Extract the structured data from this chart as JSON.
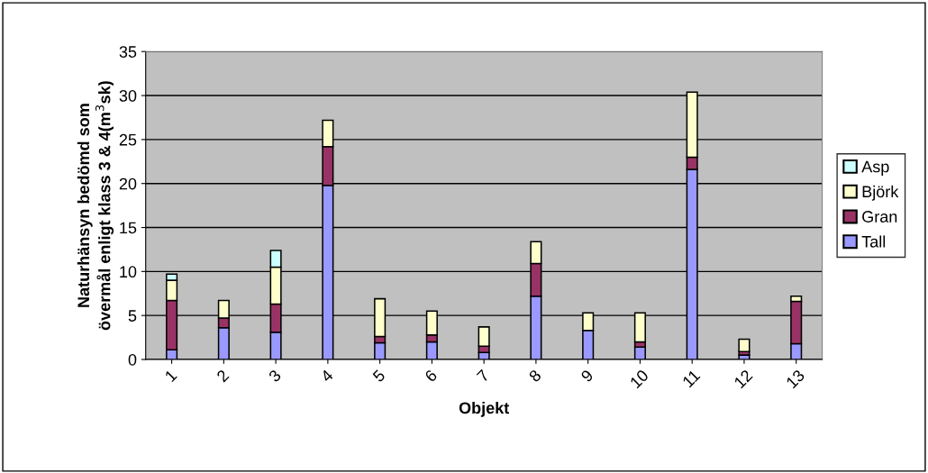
{
  "chart_data": {
    "type": "bar",
    "stacked": true,
    "xlabel": "Objekt",
    "ylabel": "Naturhänsyn bedömd som\növermål enligt klass 3 & 4(m$^{3}$sk)",
    "categories": [
      "1",
      "2",
      "3",
      "4",
      "5",
      "6",
      "7",
      "8",
      "9",
      "10",
      "11",
      "12",
      "13"
    ],
    "series": [
      {
        "name": "Tall",
        "color": "#9999ff",
        "values": [
          1.1,
          3.6,
          3.1,
          19.8,
          1.9,
          2.0,
          0.8,
          7.2,
          3.3,
          1.4,
          21.6,
          0.5,
          1.8
        ]
      },
      {
        "name": "Gran",
        "color": "#993366",
        "values": [
          5.6,
          1.1,
          3.2,
          4.4,
          0.7,
          0.8,
          0.7,
          3.7,
          null,
          0.6,
          1.4,
          0.4,
          4.8
        ]
      },
      {
        "name": "Björk",
        "color": "#ffffcc",
        "values": [
          2.3,
          2.0,
          4.2,
          3.0,
          4.3,
          2.7,
          2.2,
          2.5,
          2.0,
          3.3,
          7.4,
          1.4,
          0.6
        ]
      },
      {
        "name": "Asp",
        "color": "#ccffff",
        "values": [
          0.7,
          null,
          1.9,
          null,
          null,
          null,
          null,
          null,
          null,
          null,
          null,
          null,
          null
        ]
      }
    ],
    "ylim": [
      0,
      35
    ],
    "yticks": [
      0,
      5,
      10,
      15,
      20,
      25,
      30,
      35
    ],
    "grid": "y",
    "legend": "right"
  }
}
